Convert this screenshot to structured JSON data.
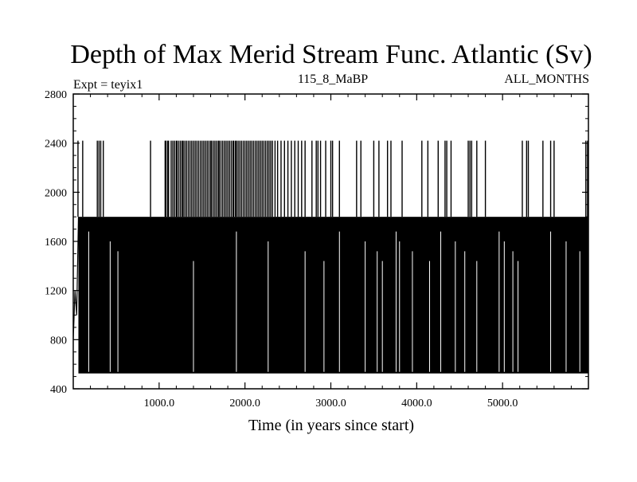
{
  "chart_data": {
    "type": "line",
    "title": "Depth of Max Merid Stream Func. Atlantic (Sv)",
    "subtitle_left": "Expt = teyix1",
    "subtitle_center": "115_8_MaBP",
    "subtitle_right": "ALL_MONTHS",
    "xlabel": "Time (in years since start)",
    "ylabel": "",
    "xlim": [
      0,
      6000
    ],
    "ylim": [
      400,
      2800
    ],
    "xticks": [
      1000,
      2000,
      3000,
      4000,
      5000
    ],
    "xtick_labels": [
      "1000.0",
      "2000.0",
      "3000.0",
      "4000.0",
      "5000.0"
    ],
    "yticks": [
      400,
      800,
      1200,
      1600,
      2000,
      2400,
      2800
    ],
    "ytick_labels": [
      "400",
      "800",
      "1200",
      "1600",
      "2000",
      "2400",
      "2800"
    ],
    "levels": [
      525,
      800,
      1200,
      1800,
      2420
    ],
    "series": [
      {
        "name": "Depth of max meridional stream function",
        "description_levels": "Monthly series oscillating densely between ~525 and ~1800 m, with frequent spikes to ~2420 m",
        "spikes_2420_x": [
          55,
          110,
          280,
          300,
          320,
          350,
          900,
          1070,
          1080,
          1100,
          1110,
          1140,
          1160,
          1180,
          1200,
          1210,
          1230,
          1250,
          1270,
          1280,
          1300,
          1320,
          1340,
          1360,
          1380,
          1400,
          1420,
          1440,
          1460,
          1480,
          1500,
          1520,
          1540,
          1560,
          1580,
          1600,
          1610,
          1630,
          1650,
          1670,
          1690,
          1700,
          1720,
          1740,
          1760,
          1780,
          1800,
          1820,
          1840,
          1860,
          1870,
          1890,
          1900,
          1920,
          1940,
          1960,
          1980,
          2000,
          2020,
          2040,
          2060,
          2080,
          2100,
          2120,
          2140,
          2160,
          2180,
          2200,
          2220,
          2240,
          2260,
          2280,
          2300,
          2320,
          2350,
          2380,
          2420,
          2460,
          2500,
          2540,
          2580,
          2620,
          2660,
          2700,
          2780,
          2830,
          2850,
          2880,
          2940,
          3000,
          3020,
          3100,
          3300,
          3350,
          3500,
          3560,
          3660,
          3700,
          3830,
          4060,
          4130,
          4250,
          4330,
          4350,
          4400,
          4600,
          4620,
          4640,
          4700,
          4800,
          5230,
          5280,
          5300,
          5470,
          5560,
          5600,
          5970,
          5990
        ],
        "dips_low_x": [
          180,
          430,
          520,
          1400,
          1900,
          2270,
          2700,
          2920,
          3100,
          3400,
          3540,
          3600,
          3760,
          3800,
          3950,
          4150,
          4280,
          4450,
          4560,
          4700,
          4960,
          5020,
          5120,
          5180,
          5560,
          5740,
          5900
        ],
        "early_segment": [
          {
            "x": 0,
            "y": 800
          },
          {
            "x": 20,
            "y": 1200
          },
          {
            "x": 40,
            "y": 1000
          },
          {
            "x": 60,
            "y": 1800
          }
        ]
      }
    ],
    "grid": false,
    "legend": "none"
  }
}
